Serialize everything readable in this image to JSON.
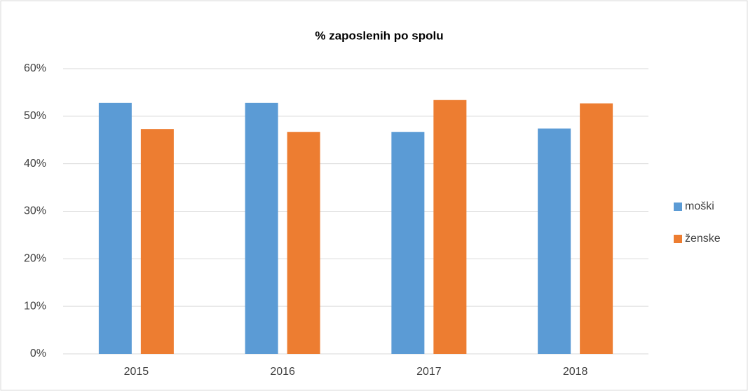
{
  "chart_data": {
    "type": "bar",
    "title": "% zaposlenih po spolu",
    "categories": [
      "2015",
      "2016",
      "2017",
      "2018"
    ],
    "series": [
      {
        "name": "moški",
        "color": "#5b9bd5",
        "values": [
          52.8,
          52.8,
          46.7,
          47.4
        ]
      },
      {
        "name": "ženske",
        "color": "#ed7d31",
        "values": [
          47.3,
          46.7,
          53.4,
          52.7
        ]
      }
    ],
    "ylim": [
      0,
      60
    ],
    "yticks": [
      {
        "value": 0,
        "label": "0%"
      },
      {
        "value": 10,
        "label": "10%"
      },
      {
        "value": 20,
        "label": "20%"
      },
      {
        "value": 30,
        "label": "30%"
      },
      {
        "value": 40,
        "label": "40%"
      },
      {
        "value": 50,
        "label": "50%"
      },
      {
        "value": 60,
        "label": "60%"
      }
    ],
    "grid": true,
    "legend": "right"
  }
}
